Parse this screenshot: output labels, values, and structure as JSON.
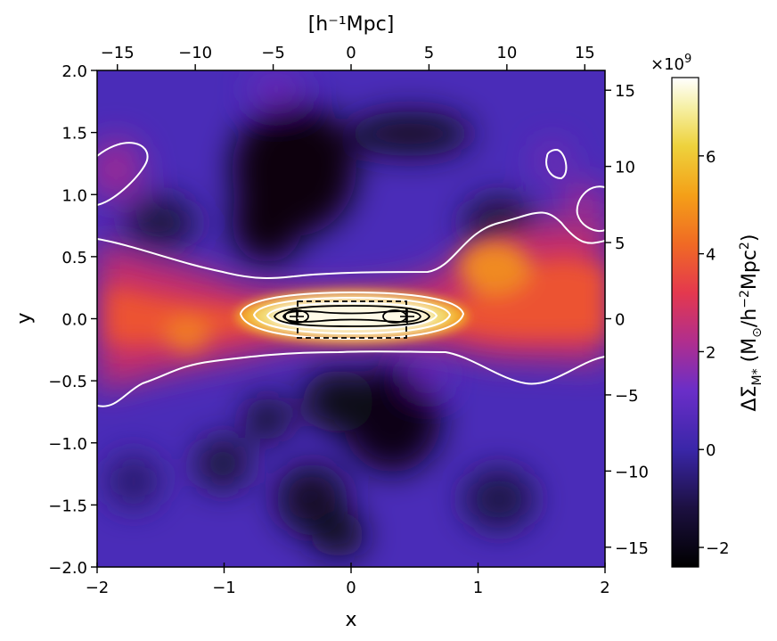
{
  "chart_data": {
    "type": "heatmap",
    "title": "",
    "xlabel": "x",
    "ylabel": "y",
    "top_xlabel": "[h⁻¹Mpc]",
    "xlim": [
      -2,
      2
    ],
    "ylim": [
      -2,
      2
    ],
    "secondary_xlim": [
      -16.3,
      16.3
    ],
    "secondary_ylim": [
      -16.3,
      16.3
    ],
    "x_ticks": [
      -2,
      -1,
      0,
      1,
      2
    ],
    "x_tick_labels": [
      "−2",
      "−1",
      "0",
      "1",
      "2"
    ],
    "y_ticks": [
      -2.0,
      -1.5,
      -1.0,
      -0.5,
      0.0,
      0.5,
      1.0,
      1.5,
      2.0
    ],
    "y_tick_labels": [
      "−2.0",
      "−1.5",
      "−1.0",
      "−0.5",
      "0.0",
      "0.5",
      "1.0",
      "1.5",
      "2.0"
    ],
    "top_ticks": [
      -15,
      -10,
      -5,
      0,
      5,
      10,
      15
    ],
    "top_tick_labels": [
      "−15",
      "−10",
      "−5",
      "0",
      "5",
      "10",
      "15"
    ],
    "right_ticks": [
      -15,
      -10,
      -5,
      0,
      5,
      10,
      15
    ],
    "right_tick_labels": [
      "−15",
      "−10",
      "−5",
      "0",
      "5",
      "10",
      "15"
    ],
    "colorbar": {
      "label": "ΔΣ_M* (M⊙/h⁻²Mpc²)",
      "multiplier": "×10^9",
      "range": [
        -2.4,
        7.6
      ],
      "ticks": [
        -2,
        0,
        2,
        4,
        6
      ],
      "tick_labels": [
        "−2",
        "0",
        "2",
        "4",
        "6"
      ],
      "colormap": "CMRmap"
    },
    "features": {
      "filament": "horizontal stellar-mass overdensity band along y ≈ 0 spanning full x range",
      "central_pair": [
        {
          "x": -0.45,
          "y": 0.0
        },
        {
          "x": 0.45,
          "y": 0.0
        }
      ],
      "dashed_box": {
        "x": [
          -0.43,
          0.43
        ],
        "y": [
          -0.16,
          0.16
        ]
      }
    }
  }
}
